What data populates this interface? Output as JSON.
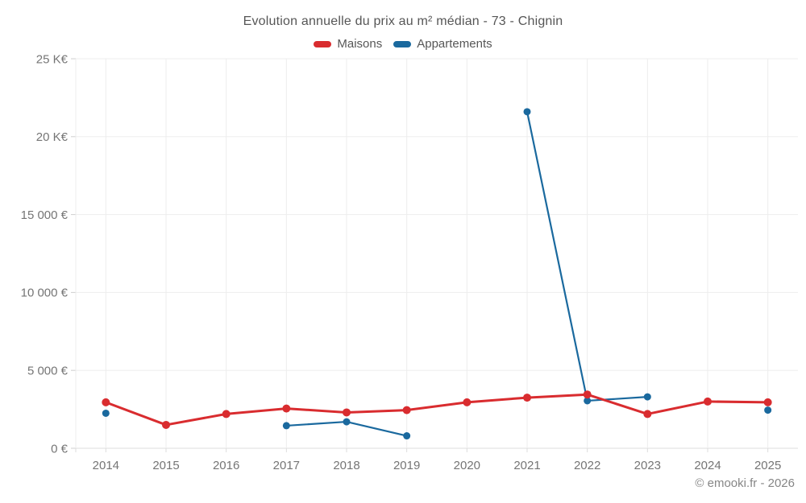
{
  "chart": {
    "title": "Evolution annuelle du prix au m² médian - 73 - Chignin",
    "copyright": "© emooki.fr - 2026"
  },
  "chart_data": {
    "type": "line",
    "title": "Evolution annuelle du prix au m² médian - 73 - Chignin",
    "x": [
      2014,
      2015,
      2016,
      2017,
      2018,
      2019,
      2020,
      2021,
      2022,
      2023,
      2024,
      2025
    ],
    "series": [
      {
        "name": "Maisons",
        "color": "#d92c2f",
        "values": [
          2950,
          1500,
          2200,
          2550,
          2300,
          2450,
          2950,
          3250,
          3450,
          2200,
          3000,
          2950
        ]
      },
      {
        "name": "Appartements",
        "color": "#1a699e",
        "values": [
          2250,
          null,
          null,
          1450,
          1700,
          800,
          null,
          21600,
          3050,
          3300,
          null,
          2450
        ]
      }
    ],
    "ylim": [
      0,
      25000
    ],
    "yticks": {
      "values": [
        0,
        5000,
        10000,
        15000,
        20000,
        25000
      ],
      "labels": [
        "0 €",
        "5 000 €",
        "10 000 €",
        "15 000 €",
        "20 K€",
        "25 K€"
      ]
    },
    "grid": "on",
    "legend_position": "top",
    "gap_rule": "line breaks where values are null"
  }
}
